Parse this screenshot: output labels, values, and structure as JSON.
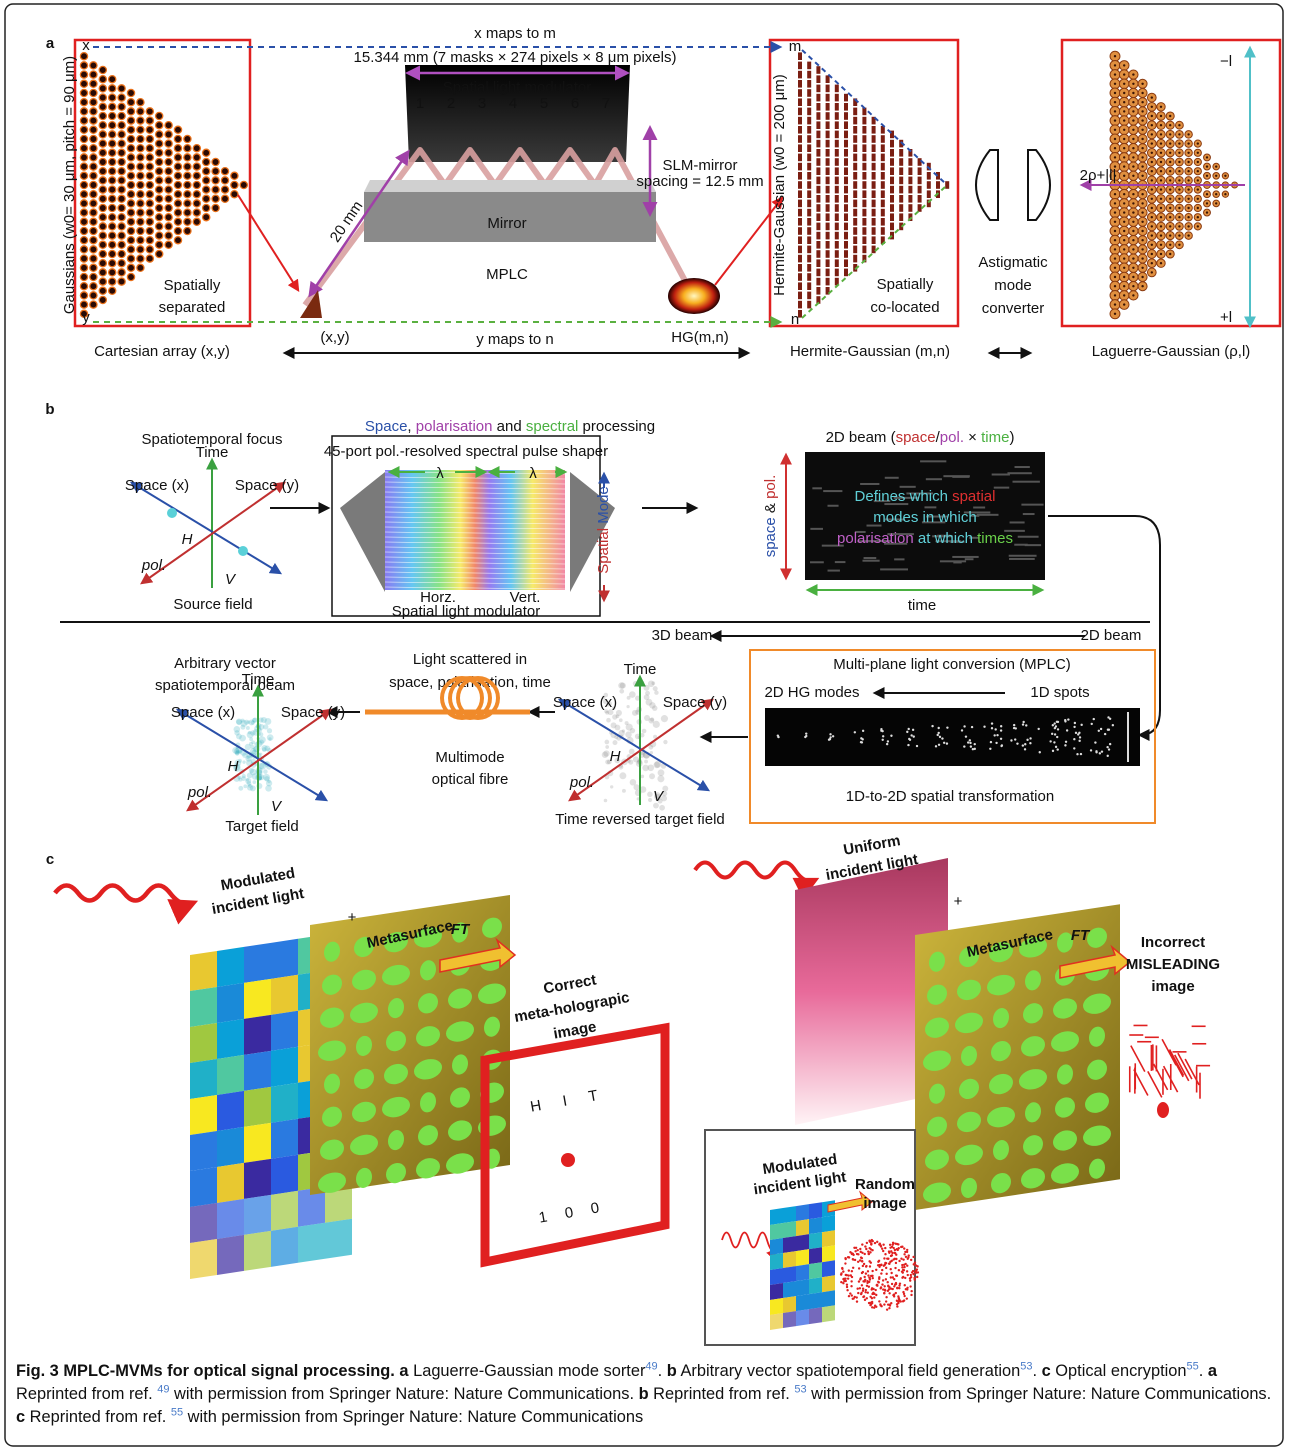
{
  "panel_a": {
    "label": "a",
    "x_maps": "x maps to m",
    "dims": "15.344 mm (7 masks × 274 pixels × 8 μm pixels)",
    "slm": "Spatial light modulator",
    "plane_numbers": [
      "1",
      "2",
      "3",
      "4",
      "5",
      "6",
      "7"
    ],
    "spacing": [
      "SLM-mirror",
      "spacing = 12.5 mm"
    ],
    "distance": "20 mm",
    "mirror": "Mirror",
    "mplc": "MPLC",
    "gaussians": "Gaussians (w0= 30 μm, pitch = 90 μm)",
    "spatially_separated": [
      "Spatially",
      "separated"
    ],
    "x": "x",
    "y": "y",
    "m": "m",
    "n": "n",
    "xy": "(x,y)",
    "hg": "HG(m,n)",
    "y_maps": "y maps to n",
    "cartesian": "Cartesian array (x,y)",
    "hermite_axis": "Hermite-Gaussian (w0 = 200 μm)",
    "co_located": [
      "Spatially",
      "co-located"
    ],
    "astigmatic": [
      "Astigmatic",
      "mode",
      "converter"
    ],
    "hermite": "Hermite-Gaussian (m,n)",
    "laguerre": "Laguerre-Gaussian (ρ,l)",
    "minus_l": "−l",
    "plus_l": "+l",
    "radial": "2ρ+|l|"
  },
  "panel_b": {
    "label": "b",
    "title": [
      "Space",
      ", ",
      "polarisation",
      " and ",
      "spectral",
      " processing"
    ],
    "source": {
      "focus": "Spatiotemporal focus",
      "time": "Time",
      "space_x": "Space (x)",
      "space_y": "Space (y)",
      "h": "H",
      "v": "V",
      "pol": "pol.",
      "caption": "Source field"
    },
    "shaper": {
      "name": "45-port pol.-resolved spectral pulse shaper",
      "lambda": [
        "λ",
        "λ"
      ],
      "mode": [
        "Spatial",
        " Mode"
      ],
      "horz": "Horz.",
      "vert": "Vert.",
      "slm": "Spatial light modulator"
    },
    "beam2d": {
      "title": [
        "2D beam (",
        "space",
        "/",
        "pol.",
        " × ",
        "time",
        ")"
      ],
      "axis_y": [
        "space",
        " & ",
        "pol."
      ],
      "axis_x": "time",
      "lines": [
        [
          "Defines which ",
          "spatial"
        ],
        [
          "modes in which"
        ],
        [
          "polarisation",
          " at which ",
          "times"
        ]
      ]
    },
    "flow": {
      "beam3d": "3D beam",
      "beam2d": "2D beam"
    },
    "mplc": {
      "title": "Multi-plane light conversion (MPLC)",
      "hg": "2D HG modes",
      "spots": "1D spots",
      "caption": "1D-to-2D spatial transformation"
    },
    "reversed": {
      "time": "Time",
      "space_x": "Space (x)",
      "space_y": "Space (y)",
      "h": "H",
      "v": "V",
      "pol": "pol.",
      "caption": "Time reversed target field"
    },
    "fibre": {
      "scatter": [
        "Light scattered in",
        "space, polarisation, time"
      ],
      "name": [
        "Multimode",
        "optical fibre"
      ]
    },
    "target": {
      "title": [
        "Arbitrary vector",
        "spatiotemporal beam"
      ],
      "time": "Time",
      "space_x": "Space (x)",
      "space_y": "Space (y)",
      "h": "H",
      "v": "V",
      "pol": "pol.",
      "caption": "Target field"
    }
  },
  "panel_c": {
    "label": "c",
    "left": {
      "incident": [
        "Modulated",
        "incident light"
      ],
      "plus": "+",
      "meta": "Metasurface",
      "ft": "FT",
      "result": [
        "Correct",
        "meta-holograpic",
        "image"
      ],
      "hologram": [
        "HIT",
        "100"
      ]
    },
    "right": {
      "incident": [
        "Uniform",
        "incident light"
      ],
      "plus": "+",
      "meta": "Metasurface",
      "ft": "FT",
      "result": [
        "Incorrect",
        "MISLEADING",
        "image"
      ]
    },
    "inset": {
      "incident": [
        "Modulated",
        "incident light"
      ],
      "result": [
        "Random",
        "image"
      ]
    }
  },
  "caption": {
    "runs": [
      {
        "text": "Fig. 3 MPLC-MVMs for optical signal processing.",
        "style": "bold"
      },
      {
        "text": " a",
        "style": "bold"
      },
      {
        "text": " Laguerre-Gaussian mode sorter",
        "style": "normal"
      },
      {
        "text": "49",
        "style": "sup"
      },
      {
        "text": ".",
        "style": "normal"
      },
      {
        "text": " b",
        "style": "bold"
      },
      {
        "text": " Arbitrary vector spatiotemporal field generation",
        "style": "normal"
      },
      {
        "text": "53",
        "style": "sup"
      },
      {
        "text": ".",
        "style": "normal"
      },
      {
        "text": " c",
        "style": "bold"
      },
      {
        "text": " Optical encryption",
        "style": "normal"
      },
      {
        "text": "55",
        "style": "sup"
      },
      {
        "text": ".",
        "style": "normal"
      },
      {
        "text": " a",
        "style": "bold"
      },
      {
        "text": " Reprinted from ref. ",
        "style": "normal"
      },
      {
        "text": "49",
        "style": "sup"
      },
      {
        "text": " with permission from Springer Nature: Nature Communications.",
        "style": "normal"
      },
      {
        "text": " b",
        "style": "bold"
      },
      {
        "text": " Reprinted from ref. ",
        "style": "normal"
      },
      {
        "text": "53",
        "style": "sup"
      },
      {
        "text": " with permission from Springer Nature: Nature Communications.",
        "style": "normal"
      },
      {
        "text": " c",
        "style": "bold"
      },
      {
        "text": " Reprinted from ref. ",
        "style": "normal"
      },
      {
        "text": "55",
        "style": "sup"
      },
      {
        "text": " with permission from Springer Nature: Nature Communications",
        "style": "normal"
      }
    ]
  }
}
